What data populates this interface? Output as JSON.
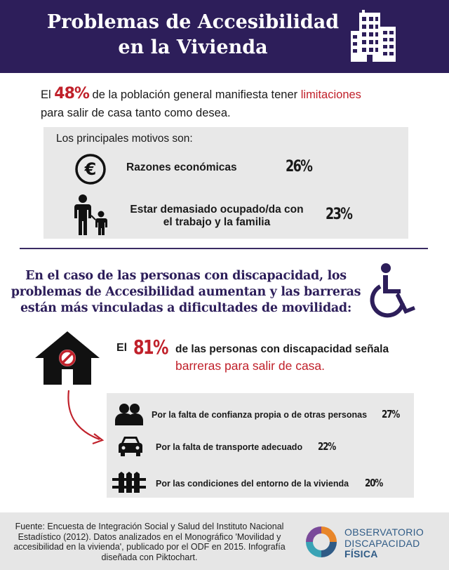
{
  "header": {
    "title_line1": "Problemas de Accesibilidad",
    "title_line2": "en la Vivienda"
  },
  "intro": {
    "prefix": "El",
    "percent": "48%",
    "middle": "de la población general manifiesta tener",
    "highlight": "limitaciones",
    "line2": "para salir de casa tanto como desea."
  },
  "motives": {
    "heading": "Los principales motivos son:",
    "items": [
      {
        "label_line1": "Razones económicas",
        "label_line2": "",
        "percent": "26%",
        "icon": "euro-icon"
      },
      {
        "label_line1": "Estar demasiado ocupado/da con",
        "label_line2": "el trabajo y la familia",
        "percent": "23%",
        "icon": "family-icon"
      }
    ]
  },
  "disability": {
    "line1": "En el caso de las personas con discapacidad, los",
    "line2": "problemas de Accesibilidad aumentan y las barreras",
    "line3": "están más vinculadas a dificultades de movilidad:"
  },
  "stat81": {
    "prefix": "El",
    "percent": "81%",
    "line1": "de las personas con discapacidad señala",
    "line2": "barreras para salir de casa."
  },
  "reasons": [
    {
      "label": "Por la falta de confianza propia o de otras personas",
      "percent": "27%",
      "icon": "people-icon"
    },
    {
      "label": "Por la falta de transporte adecuado",
      "percent": "22%",
      "icon": "car-icon"
    },
    {
      "label": "Por las condiciones del entorno de la vivienda",
      "percent": "20%",
      "icon": "fence-icon"
    }
  ],
  "footer": {
    "source_line1": "Fuente: Encuesta de Integración Social  y Salud del Instituto Nacional",
    "source_line2": "Estadístico (2012). Datos analizados en el Monográfico 'Movilidad y",
    "source_line3": "accesibilidad en la vivienda', publicado por el ODF en 2015. Infografía",
    "source_line4": "diseñada con Piktochart.",
    "org_line1": "OBSERVATORIO",
    "org_line2": "DISCAPACIDAD",
    "org_line3": "FÍSICA"
  },
  "colors": {
    "header_bg": "#2d1e5a",
    "accent_red": "#c0202a",
    "panel_gray": "#e8e8e8",
    "odf_blue": "#2f5b86"
  }
}
